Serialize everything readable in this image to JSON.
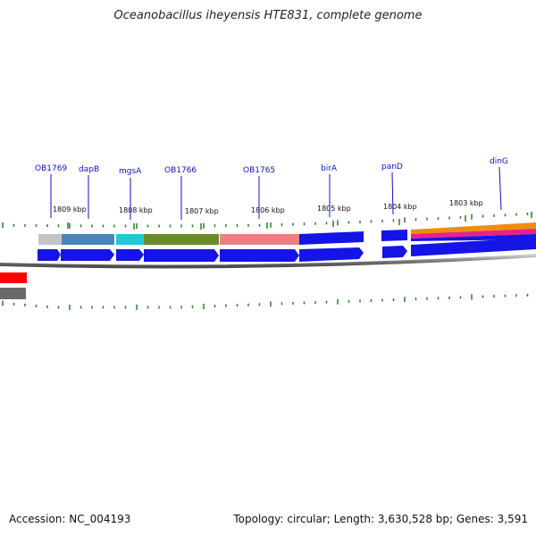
{
  "title": "Oceanobacillus iheyensis HTE831, complete genome",
  "footer": {
    "accession": "Accession: NC_004193",
    "summary": "Topology: circular; Length: 3,630,528 bp; Genes: 3,591"
  },
  "colors": {
    "gene_label": "#1010c0",
    "tick": "#2a7a2a",
    "backbone": "#7a7a7a",
    "strand_arrow": "#1414e6"
  },
  "gene_labels": [
    {
      "name": "OB1769"
    },
    {
      "name": "dapB"
    },
    {
      "name": "mgsA"
    },
    {
      "name": "OB1766"
    },
    {
      "name": "OB1765"
    },
    {
      "name": "birA"
    },
    {
      "name": "panD"
    },
    {
      "name": "dinG"
    }
  ],
  "tick_labels": [
    {
      "text": "1809 kbp"
    },
    {
      "text": "1808 kbp"
    },
    {
      "text": "1807 kbp"
    },
    {
      "text": "1806 kbp"
    },
    {
      "text": "1805 kbp"
    },
    {
      "text": "1804 kbp"
    },
    {
      "text": "1803 kbp"
    }
  ]
}
